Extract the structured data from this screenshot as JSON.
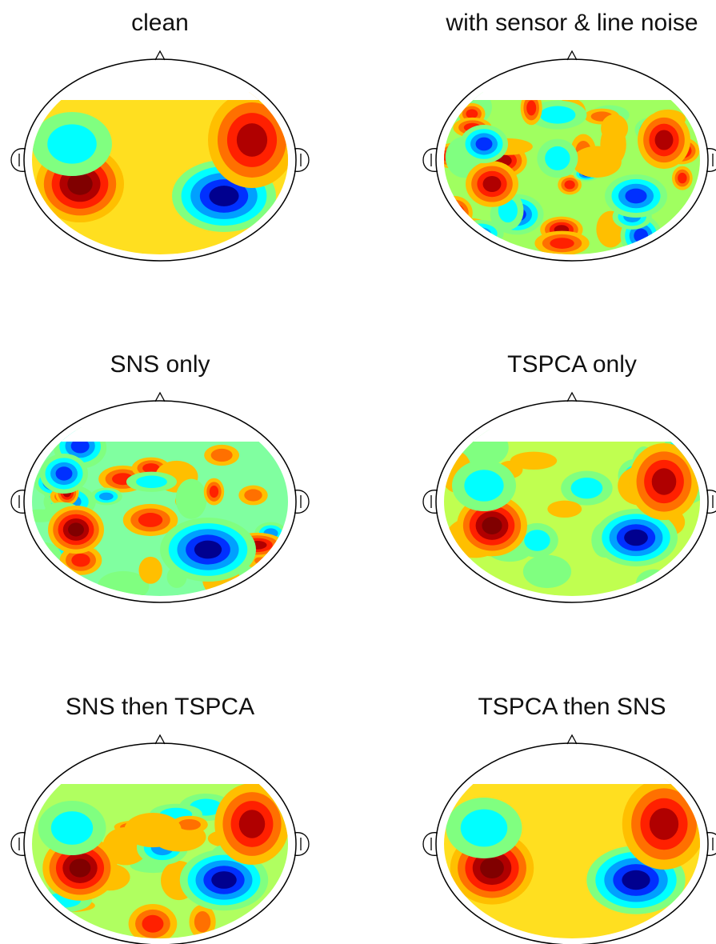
{
  "panels": [
    {
      "title": "clean"
    },
    {
      "title": "with sensor & line noise"
    },
    {
      "title": "SNS only"
    },
    {
      "title": "TSPCA only"
    },
    {
      "title": "SNS then TSPCA"
    },
    {
      "title": "TSPCA then SNS"
    }
  ]
}
